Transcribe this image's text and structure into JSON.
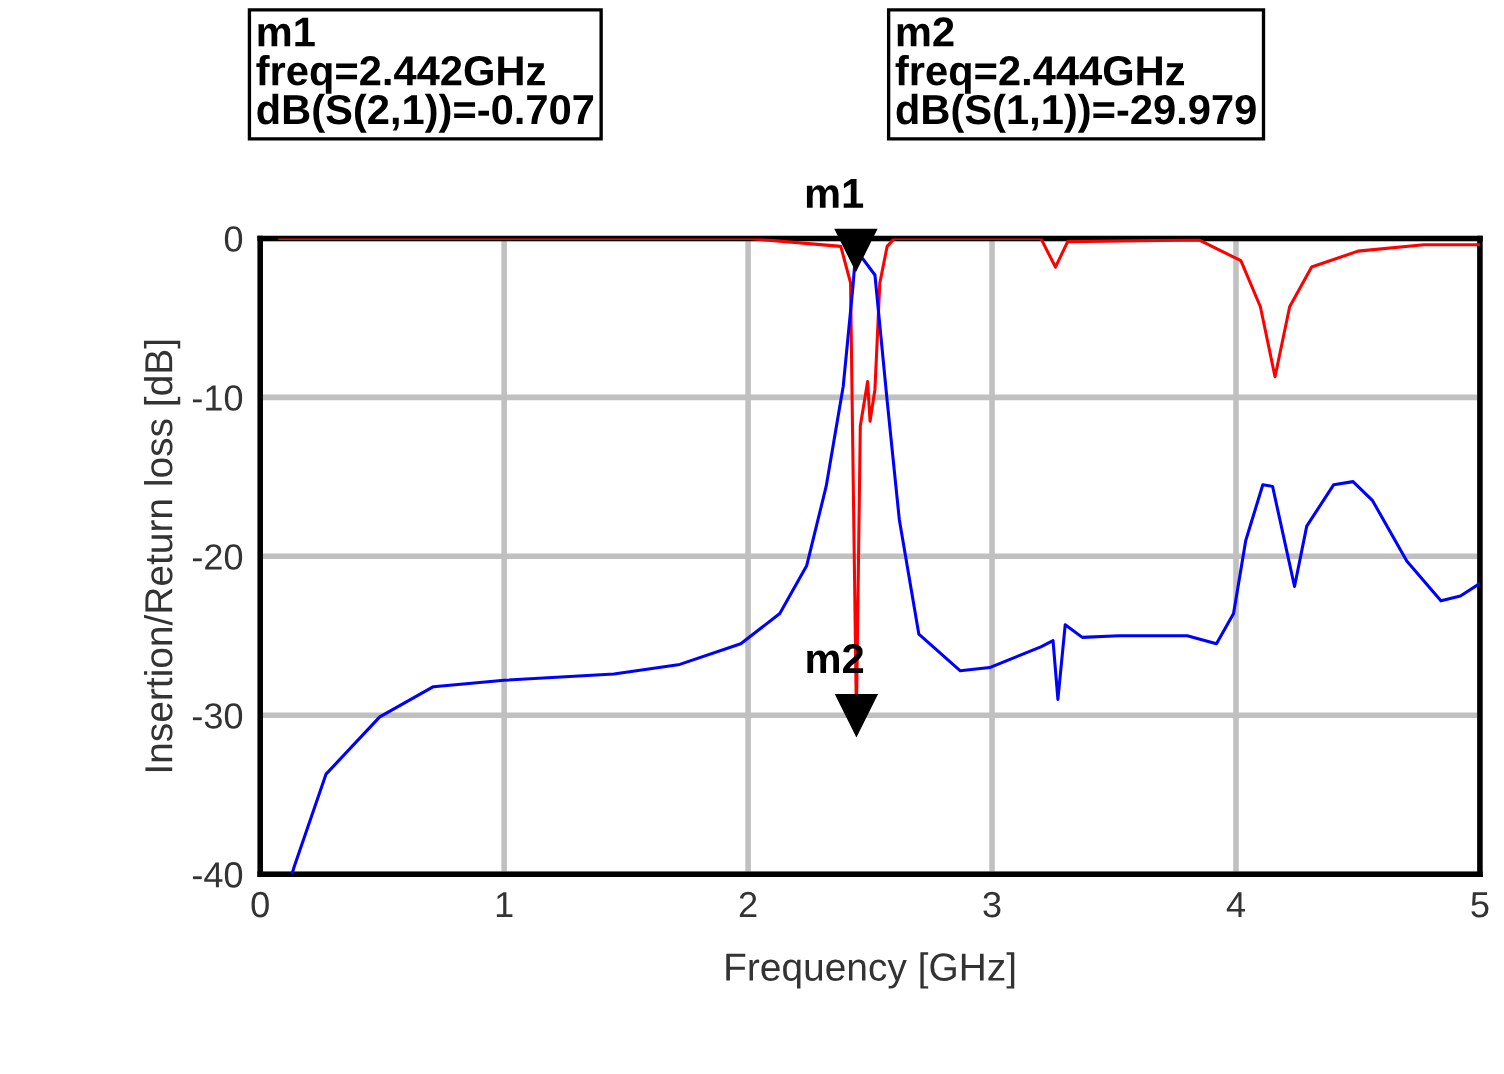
{
  "chart_data": {
    "type": "line",
    "xlabel": "Frequency [GHz]",
    "ylabel": "Insertion/Return loss [dB]",
    "xlim": [
      0,
      5
    ],
    "ylim": [
      -40,
      0
    ],
    "xticks": [
      0,
      1,
      2,
      3,
      4,
      5
    ],
    "yticks": [
      0,
      -10,
      -20,
      -30,
      -40
    ],
    "grid": true,
    "series": [
      {
        "color": "#ff0000",
        "x": [
          0.08,
          1.0,
          2.0,
          2.38,
          2.42,
          2.444,
          2.46,
          2.49,
          2.5,
          2.52,
          2.54,
          2.57,
          2.6,
          3.2,
          3.26,
          3.31,
          3.85,
          4.02,
          4.1,
          4.16,
          4.22,
          4.31,
          4.5,
          4.77,
          5.0
        ],
        "values": [
          0,
          0,
          0,
          -0.5,
          -2.8,
          -30,
          -11.8,
          -9,
          -11.5,
          -9.5,
          -2.8,
          -0.5,
          0,
          0,
          -1.8,
          -0.2,
          -0.1,
          -1.4,
          -4.3,
          -8.7,
          -4.3,
          -1.8,
          -0.8,
          -0.4,
          -0.4
        ]
      },
      {
        "color": "#0000ff",
        "x": [
          0.13,
          0.14,
          0.27,
          0.49,
          0.71,
          1.0,
          1.45,
          1.72,
          1.97,
          2.13,
          2.24,
          2.32,
          2.39,
          2.43,
          2.442,
          2.52,
          2.57,
          2.62,
          2.7,
          2.87,
          2.99,
          3.2,
          3.25,
          3.27,
          3.3,
          3.37,
          3.52,
          3.8,
          3.92,
          3.99,
          4.04,
          4.11,
          4.15,
          4.24,
          4.29,
          4.4,
          4.48,
          4.56,
          4.7,
          4.84,
          4.92,
          5.0
        ],
        "values": [
          -40,
          -39.5,
          -33.7,
          -30.1,
          -28.2,
          -27.8,
          -27.4,
          -26.8,
          -25.5,
          -23.6,
          -20.6,
          -15.6,
          -9.3,
          -3,
          -0.7,
          -2.3,
          -10.2,
          -17.7,
          -24.9,
          -27.2,
          -27,
          -25.7,
          -25.3,
          -29,
          -24.3,
          -25.1,
          -25,
          -25,
          -25.5,
          -23.6,
          -19,
          -15.5,
          -15.6,
          -21.9,
          -18.1,
          -15.5,
          -15.3,
          -16.5,
          -20.3,
          -22.8,
          -22.5,
          -21.7
        ]
      }
    ],
    "annotations": [
      "m1\nfreq=2.442GHz\ndB(S(2,1))=-0.707",
      "m2\nfreq=2.444GHz\ndB(S(1,1))=-29.979",
      {
        "text": "m1",
        "x": 2.442,
        "y": -0.707
      },
      {
        "text": "m2",
        "x": 2.444,
        "y": -29.979
      }
    ]
  }
}
